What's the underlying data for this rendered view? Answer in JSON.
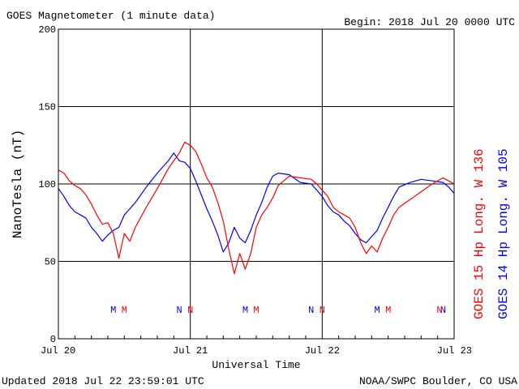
{
  "header": {
    "title": "GOES Magnetometer (1 minute data)",
    "begin": "Begin:  2018 Jul 20 0000 UTC"
  },
  "footer": {
    "updated": "Updated 2018 Jul 22 23:59:01 UTC",
    "credit": "NOAA/SWPC Boulder, CO USA"
  },
  "chart_data": {
    "type": "line",
    "title": "GOES Magnetometer (1 minute data)",
    "xlabel": "Universal Time",
    "ylabel": "NanoTesla (nT)",
    "ylim": [
      0,
      200
    ],
    "xlim": [
      0,
      72
    ],
    "x_unit": "hours since 2018 Jul 20 0000 UTC",
    "yticks": [
      "0",
      "50",
      "100",
      "150",
      "200"
    ],
    "xticks": [
      {
        "hour": 0,
        "label": "Jul 20"
      },
      {
        "hour": 24,
        "label": "Jul 21"
      },
      {
        "hour": 48,
        "label": "Jul 22"
      },
      {
        "hour": 72,
        "label": "Jul 23"
      }
    ],
    "grid": true,
    "markers": [
      {
        "hour": 10,
        "label": "M",
        "color": "#0000ff"
      },
      {
        "hour": 12,
        "label": "M",
        "color": "#ff0000"
      },
      {
        "hour": 22,
        "label": "N",
        "color": "#0000ff"
      },
      {
        "hour": 24,
        "label": "N",
        "color": "#ff0000"
      },
      {
        "hour": 34,
        "label": "M",
        "color": "#0000ff"
      },
      {
        "hour": 36,
        "label": "M",
        "color": "#ff0000"
      },
      {
        "hour": 46,
        "label": "N",
        "color": "#0000ff"
      },
      {
        "hour": 48,
        "label": "N",
        "color": "#ff0000"
      },
      {
        "hour": 58,
        "label": "M",
        "color": "#0000ff"
      },
      {
        "hour": 60,
        "label": "M",
        "color": "#ff0000"
      },
      {
        "hour": 70,
        "label": "N",
        "color": "#0000ff"
      },
      {
        "hour": 72,
        "label": "N",
        "color": "#ff0000"
      }
    ],
    "series": [
      {
        "name": "GOES 15 Hp",
        "longitude": "Long. W 136",
        "color": "#ff0000",
        "x": [
          0,
          1,
          2,
          3,
          4,
          5,
          6,
          7,
          8,
          9,
          10,
          11,
          12,
          13,
          14,
          16,
          18,
          20,
          21,
          22,
          23,
          24,
          25,
          26,
          27,
          28,
          29,
          30,
          31,
          32,
          33,
          34,
          35,
          36,
          37,
          38,
          39,
          40,
          42,
          44,
          46,
          47,
          48,
          49,
          50,
          51,
          52,
          53,
          54,
          55,
          56,
          57,
          58,
          59,
          60,
          61,
          62,
          64,
          66,
          68,
          70,
          71,
          72
        ],
        "values": [
          109,
          107,
          102,
          99,
          97,
          93,
          87,
          80,
          74,
          75,
          68,
          52,
          68,
          63,
          72,
          85,
          97,
          110,
          115,
          120,
          127,
          125,
          121,
          113,
          104,
          98,
          88,
          76,
          58,
          42,
          55,
          45,
          55,
          72,
          80,
          85,
          91,
          99,
          105,
          104,
          103,
          100,
          96,
          92,
          85,
          82,
          80,
          78,
          72,
          62,
          55,
          60,
          56,
          65,
          72,
          80,
          85,
          90,
          95,
          100,
          104,
          102,
          100
        ]
      },
      {
        "name": "GOES 14 Hp",
        "longitude": "Long. W 105",
        "color": "#0000ff",
        "x": [
          0,
          1,
          2,
          3,
          4,
          5,
          6,
          7,
          8,
          9,
          10,
          11,
          12,
          13,
          14,
          16,
          18,
          20,
          21,
          22,
          23,
          24,
          25,
          26,
          27,
          28,
          29,
          30,
          31,
          32,
          33,
          34,
          35,
          36,
          37,
          38,
          39,
          40,
          42,
          44,
          46,
          47,
          48,
          49,
          50,
          51,
          52,
          53,
          54,
          55,
          56,
          57,
          58,
          59,
          60,
          61,
          62,
          64,
          66,
          68,
          70,
          71,
          72
        ],
        "values": [
          97,
          92,
          86,
          82,
          80,
          78,
          72,
          68,
          63,
          67,
          70,
          72,
          80,
          84,
          88,
          98,
          107,
          115,
          120,
          115,
          114,
          110,
          102,
          93,
          84,
          76,
          67,
          56,
          62,
          72,
          65,
          62,
          70,
          80,
          88,
          98,
          105,
          107,
          106,
          101,
          100,
          96,
          92,
          86,
          82,
          80,
          76,
          73,
          68,
          64,
          62,
          66,
          70,
          78,
          85,
          92,
          98,
          101,
          103,
          102,
          101,
          98,
          94
        ]
      }
    ]
  }
}
